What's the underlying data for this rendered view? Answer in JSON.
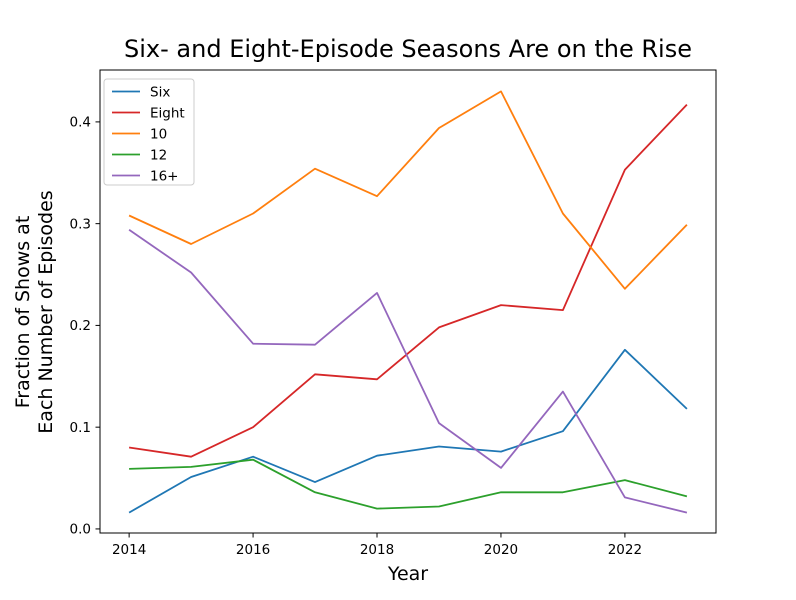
{
  "chart_data": {
    "type": "line",
    "title": "Six- and Eight-Episode Seasons Are on the Rise",
    "xlabel": "Year",
    "ylabel": "Fraction of Shows at\nEach Number of Episodes",
    "ylabel_lines": [
      "Fraction of Shows at",
      "Each Number of Episodes"
    ],
    "x": [
      2014,
      2015,
      2016,
      2017,
      2018,
      2019,
      2020,
      2021,
      2022,
      2023
    ],
    "series": [
      {
        "name": "Six",
        "color": "#1f77b4",
        "values": [
          0.016,
          0.051,
          0.071,
          0.046,
          0.072,
          0.081,
          0.076,
          0.096,
          0.176,
          0.118
        ]
      },
      {
        "name": "Eight",
        "color": "#d62728",
        "values": [
          0.08,
          0.071,
          0.1,
          0.152,
          0.147,
          0.198,
          0.22,
          0.215,
          0.353,
          0.417
        ]
      },
      {
        "name": "10",
        "color": "#ff7f0e",
        "values": [
          0.308,
          0.28,
          0.31,
          0.354,
          0.327,
          0.394,
          0.43,
          0.31,
          0.236,
          0.299
        ]
      },
      {
        "name": "12",
        "color": "#2ca02c",
        "values": [
          0.059,
          0.061,
          0.068,
          0.036,
          0.02,
          0.022,
          0.036,
          0.036,
          0.048,
          0.032
        ]
      },
      {
        "name": "16+",
        "color": "#9467bd",
        "values": [
          0.294,
          0.252,
          0.182,
          0.181,
          0.232,
          0.104,
          0.06,
          0.135,
          0.031,
          0.016
        ]
      }
    ],
    "x_ticks": [
      "2014",
      "2016",
      "2018",
      "2020",
      "2022"
    ],
    "y_ticks": [
      "0.0",
      "0.1",
      "0.2",
      "0.3",
      "0.4"
    ],
    "xlim": [
      2013.53,
      2023.47
    ],
    "ylim": [
      -0.004,
      0.451
    ],
    "grid": false,
    "legend_position": "upper left",
    "spine_color": "#000000",
    "background_color": "#ffffff"
  }
}
